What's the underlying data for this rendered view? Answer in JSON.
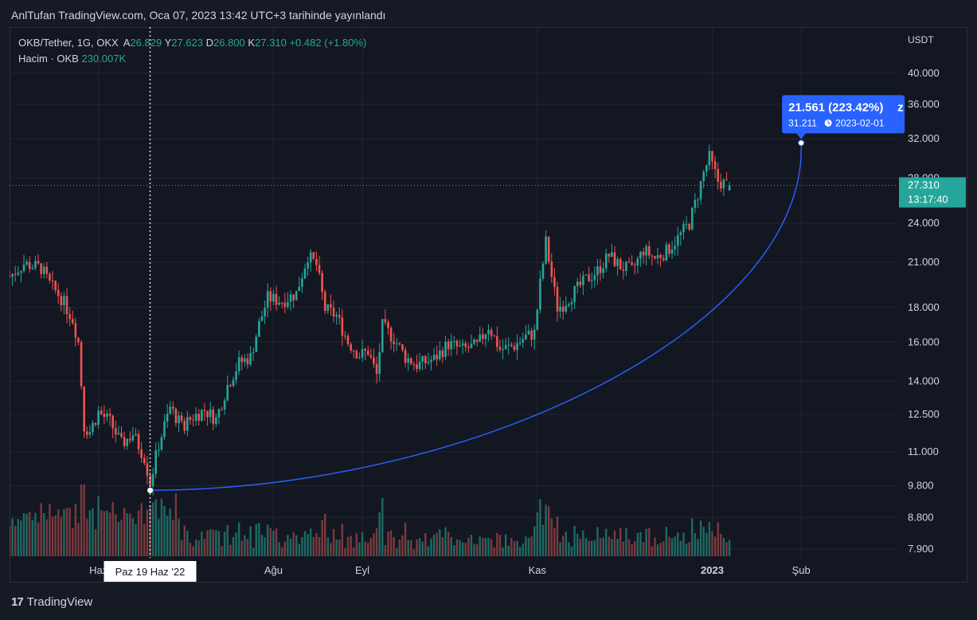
{
  "header": {
    "published_text": "AnlTufan TradingView.com, Oca 07, 2023 13:42 UTC+3 tarihinde yayınlandı"
  },
  "legend": {
    "symbol": "OKB/Tether, 1G, OKX",
    "open_label": "A",
    "open_value": "26.829",
    "high_label": "Y",
    "high_value": "27.623",
    "low_label": "D",
    "low_value": "26.800",
    "close_label": "K",
    "close_value": "27.310",
    "change": "+0.482 (+1.80%)",
    "volume_label": "Hacim · OKB",
    "volume_value": "230.007K"
  },
  "chart_data": {
    "type": "candlestick",
    "title": "OKB/Tether, 1G, OKX",
    "y_axis_title": "USDT",
    "y_scale": "log",
    "y_tick_labels": [
      "40.000",
      "36.000",
      "32.000",
      "28.000",
      "24.000",
      "21.000",
      "18.000",
      "16.000",
      "14.000",
      "12.500",
      "11.000",
      "9.800",
      "8.800",
      "7.900"
    ],
    "x_tick_labels": [
      "Haz",
      "Ağu",
      "Eyl",
      "Kas",
      "2023",
      "Şub"
    ],
    "last_price": {
      "value": "27.310",
      "countdown": "13:17:40"
    },
    "crosshair_date_label": "Paz 19 Haz '22",
    "annotation": {
      "change_text": "21.561 (223.42%)",
      "trailing_text": "z",
      "target_price": "31.211",
      "target_date": "2023-02-01",
      "start": {
        "date": "2022-06-19",
        "price": 9.65
      },
      "end": {
        "date": "2023-02-01",
        "price": 31.211
      }
    },
    "price_path_waypoints": [
      {
        "date": "2022-05-01",
        "price": 20.0
      },
      {
        "date": "2022-05-06",
        "price": 20.9
      },
      {
        "date": "2022-05-12",
        "price": 20.6
      },
      {
        "date": "2022-05-15",
        "price": 19.5
      },
      {
        "date": "2022-05-19",
        "price": 18.6
      },
      {
        "date": "2022-05-23",
        "price": 17.3
      },
      {
        "date": "2022-05-25",
        "price": 16.0
      },
      {
        "date": "2022-05-27",
        "price": 12.0
      },
      {
        "date": "2022-05-29",
        "price": 11.8
      },
      {
        "date": "2022-06-01",
        "price": 12.6
      },
      {
        "date": "2022-06-05",
        "price": 12.2
      },
      {
        "date": "2022-06-09",
        "price": 11.3
      },
      {
        "date": "2022-06-13",
        "price": 11.7
      },
      {
        "date": "2022-06-17",
        "price": 10.8
      },
      {
        "date": "2022-06-19",
        "price": 9.9
      },
      {
        "date": "2022-06-22",
        "price": 11.3
      },
      {
        "date": "2022-06-26",
        "price": 12.8
      },
      {
        "date": "2022-06-30",
        "price": 12.0
      },
      {
        "date": "2022-07-04",
        "price": 12.4
      },
      {
        "date": "2022-07-08",
        "price": 12.7
      },
      {
        "date": "2022-07-12",
        "price": 12.3
      },
      {
        "date": "2022-07-16",
        "price": 13.8
      },
      {
        "date": "2022-07-20",
        "price": 14.9
      },
      {
        "date": "2022-07-24",
        "price": 15.2
      },
      {
        "date": "2022-07-27",
        "price": 17.0
      },
      {
        "date": "2022-07-30",
        "price": 18.6
      },
      {
        "date": "2022-08-04",
        "price": 18.4
      },
      {
        "date": "2022-08-09",
        "price": 18.9
      },
      {
        "date": "2022-08-13",
        "price": 21.5
      },
      {
        "date": "2022-08-16",
        "price": 20.8
      },
      {
        "date": "2022-08-19",
        "price": 17.9
      },
      {
        "date": "2022-08-23",
        "price": 17.5
      },
      {
        "date": "2022-08-27",
        "price": 16.0
      },
      {
        "date": "2022-08-31",
        "price": 15.3
      },
      {
        "date": "2022-09-03",
        "price": 15.5
      },
      {
        "date": "2022-09-06",
        "price": 14.3
      },
      {
        "date": "2022-09-08",
        "price": 16.9
      },
      {
        "date": "2022-09-12",
        "price": 16.2
      },
      {
        "date": "2022-09-16",
        "price": 15.2
      },
      {
        "date": "2022-09-20",
        "price": 14.8
      },
      {
        "date": "2022-09-26",
        "price": 15.1
      },
      {
        "date": "2022-10-01",
        "price": 15.9
      },
      {
        "date": "2022-10-06",
        "price": 15.6
      },
      {
        "date": "2022-10-11",
        "price": 15.8
      },
      {
        "date": "2022-10-15",
        "price": 16.9
      },
      {
        "date": "2022-10-19",
        "price": 15.6
      },
      {
        "date": "2022-10-24",
        "price": 15.8
      },
      {
        "date": "2022-10-28",
        "price": 16.3
      },
      {
        "date": "2022-10-31",
        "price": 16.5
      },
      {
        "date": "2022-11-02",
        "price": 19.5
      },
      {
        "date": "2022-11-04",
        "price": 22.5
      },
      {
        "date": "2022-11-06",
        "price": 20.0
      },
      {
        "date": "2022-11-08",
        "price": 18.0
      },
      {
        "date": "2022-11-10",
        "price": 18.2
      },
      {
        "date": "2022-11-14",
        "price": 19.0
      },
      {
        "date": "2022-11-18",
        "price": 19.8
      },
      {
        "date": "2022-11-22",
        "price": 20.4
      },
      {
        "date": "2022-11-26",
        "price": 21.5
      },
      {
        "date": "2022-11-30",
        "price": 20.7
      },
      {
        "date": "2022-12-04",
        "price": 20.4
      },
      {
        "date": "2022-12-08",
        "price": 21.9
      },
      {
        "date": "2022-12-12",
        "price": 21.3
      },
      {
        "date": "2022-12-16",
        "price": 21.8
      },
      {
        "date": "2022-12-20",
        "price": 22.8
      },
      {
        "date": "2022-12-24",
        "price": 24.0
      },
      {
        "date": "2022-12-27",
        "price": 26.5
      },
      {
        "date": "2022-12-29",
        "price": 28.5
      },
      {
        "date": "2022-12-31",
        "price": 30.0
      },
      {
        "date": "2023-01-03",
        "price": 27.7
      },
      {
        "date": "2023-01-07",
        "price": 27.31
      }
    ]
  }
}
